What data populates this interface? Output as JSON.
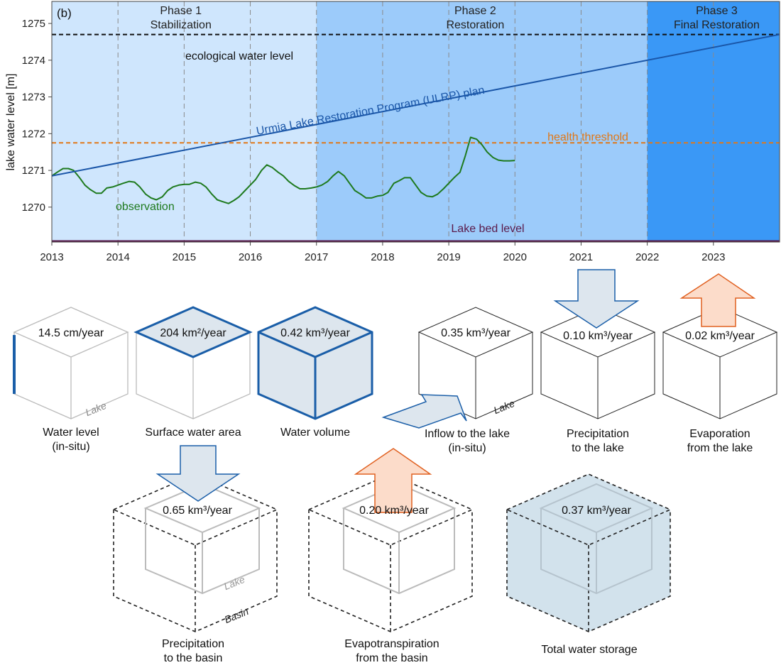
{
  "panel_label": "(b)",
  "phases": [
    {
      "title": "Phase 1",
      "subtitle": "Stabilization",
      "start": 2013,
      "end": 2017,
      "color": "#cfe6fd"
    },
    {
      "title": "Phase 2",
      "subtitle": "Restoration",
      "start": 2017,
      "end": 2022,
      "color": "#9ccbfa"
    },
    {
      "title": "Phase 3",
      "subtitle": "Final Restoration",
      "start": 2022,
      "end": 2024,
      "color": "#3a98f6"
    }
  ],
  "chart_data": {
    "type": "line",
    "ylabel": "lake water level [m]",
    "xlim": [
      2013,
      2024
    ],
    "ylim": [
      1269.05,
      1275.6
    ],
    "x_ticks": [
      2013,
      2014,
      2015,
      2016,
      2017,
      2018,
      2019,
      2020,
      2021,
      2022,
      2023
    ],
    "y_ticks": [
      1270,
      1271,
      1272,
      1273,
      1274,
      1275
    ],
    "series": [
      {
        "name": "observation",
        "color": "#1e7a1e",
        "x": [
          2013.0,
          2013.08,
          2013.17,
          2013.25,
          2013.33,
          2013.42,
          2013.5,
          2013.58,
          2013.67,
          2013.75,
          2013.83,
          2013.92,
          2014.0,
          2014.08,
          2014.17,
          2014.25,
          2014.33,
          2014.42,
          2014.5,
          2014.58,
          2014.67,
          2014.75,
          2014.83,
          2014.92,
          2015.0,
          2015.08,
          2015.17,
          2015.25,
          2015.33,
          2015.42,
          2015.5,
          2015.58,
          2015.67,
          2015.75,
          2015.83,
          2015.92,
          2016.0,
          2016.08,
          2016.17,
          2016.25,
          2016.33,
          2016.42,
          2016.5,
          2016.58,
          2016.67,
          2016.75,
          2016.83,
          2016.92,
          2017.0,
          2017.08,
          2017.17,
          2017.25,
          2017.33,
          2017.42,
          2017.5,
          2017.58,
          2017.67,
          2017.75,
          2017.83,
          2017.92,
          2018.0,
          2018.08,
          2018.17,
          2018.25,
          2018.33,
          2018.42,
          2018.5,
          2018.58,
          2018.67,
          2018.75,
          2018.83,
          2018.92,
          2019.0,
          2019.08,
          2019.17,
          2019.25,
          2019.33,
          2019.42,
          2019.5,
          2019.58,
          2019.67,
          2019.75,
          2019.83,
          2019.92,
          2020.0
        ],
        "y": [
          1270.85,
          1270.95,
          1271.05,
          1271.05,
          1271.0,
          1270.8,
          1270.6,
          1270.48,
          1270.38,
          1270.38,
          1270.52,
          1270.55,
          1270.6,
          1270.65,
          1270.7,
          1270.68,
          1270.55,
          1270.35,
          1270.25,
          1270.2,
          1270.28,
          1270.45,
          1270.55,
          1270.6,
          1270.62,
          1270.62,
          1270.68,
          1270.65,
          1270.55,
          1270.35,
          1270.2,
          1270.15,
          1270.1,
          1270.18,
          1270.28,
          1270.45,
          1270.6,
          1270.75,
          1271.0,
          1271.15,
          1271.08,
          1270.95,
          1270.85,
          1270.7,
          1270.58,
          1270.5,
          1270.5,
          1270.52,
          1270.55,
          1270.6,
          1270.7,
          1270.85,
          1270.97,
          1270.85,
          1270.65,
          1270.45,
          1270.35,
          1270.25,
          1270.25,
          1270.3,
          1270.32,
          1270.4,
          1270.65,
          1270.72,
          1270.8,
          1270.8,
          1270.6,
          1270.4,
          1270.3,
          1270.28,
          1270.35,
          1270.5,
          1270.65,
          1270.8,
          1270.95,
          1271.4,
          1271.9,
          1271.85,
          1271.7,
          1271.5,
          1271.35,
          1271.28,
          1271.26,
          1271.26,
          1271.27
        ]
      },
      {
        "name": "Urmia Lake Restoration Program (ULRP) plan",
        "color": "#1a56a8",
        "x": [
          2013.0,
          2024.0
        ],
        "y": [
          1270.85,
          1274.7
        ]
      }
    ],
    "reference_lines": [
      {
        "label": "ecological water level",
        "y": 1274.7,
        "color": "#111111",
        "style": "dashed"
      },
      {
        "label": "health threshold",
        "y": 1271.75,
        "color": "#e07818",
        "style": "dashed"
      },
      {
        "label": "Lake bed level",
        "y": 1269.08,
        "color": "#5a1a4a",
        "style": "solid"
      }
    ],
    "annotations": {
      "observation_label": "observation"
    }
  },
  "diagram": {
    "lake_word": "Lake",
    "basin_word": "Basin",
    "unit_km3": "km³/year",
    "items": [
      {
        "id": "water-level",
        "value": "14.5 cm/year",
        "caption_1": "Water level",
        "caption_2": "(in-situ)"
      },
      {
        "id": "surface-area",
        "value": "204 km²/year",
        "caption_1": "Surface water area",
        "caption_2": ""
      },
      {
        "id": "water-volume",
        "value": "0.42 km³/year",
        "caption_1": "Water volume",
        "caption_2": ""
      },
      {
        "id": "inflow",
        "value": "0.35 km³/year",
        "caption_1": "Inflow to the lake",
        "caption_2": "(in-situ)"
      },
      {
        "id": "precip-lake",
        "value": "0.10 km³/year",
        "caption_1": "Precipitation",
        "caption_2": "to the lake"
      },
      {
        "id": "evap-lake",
        "value": "0.02 km³/year",
        "caption_1": "Evaporation",
        "caption_2": "from the lake"
      },
      {
        "id": "precip-basin",
        "value": "0.65 km³/year",
        "caption_1": "Precipitation",
        "caption_2": "to the basin"
      },
      {
        "id": "evapotrans-basin",
        "value": "0.20 km³/year",
        "caption_1": "Evapotranspiration",
        "caption_2": "from the basin"
      },
      {
        "id": "total-storage",
        "value": "0.37 km³/year",
        "caption_1": "Total water storage",
        "caption_2": ""
      }
    ],
    "colors": {
      "blue_edge": "#1a5ea8",
      "blue_fill": "#dde6ee",
      "orange_edge": "#e06020",
      "orange_fill": "#fcdcca",
      "grey_edge": "#b8b8b8",
      "storage_fill": "#d2e2ec"
    }
  }
}
